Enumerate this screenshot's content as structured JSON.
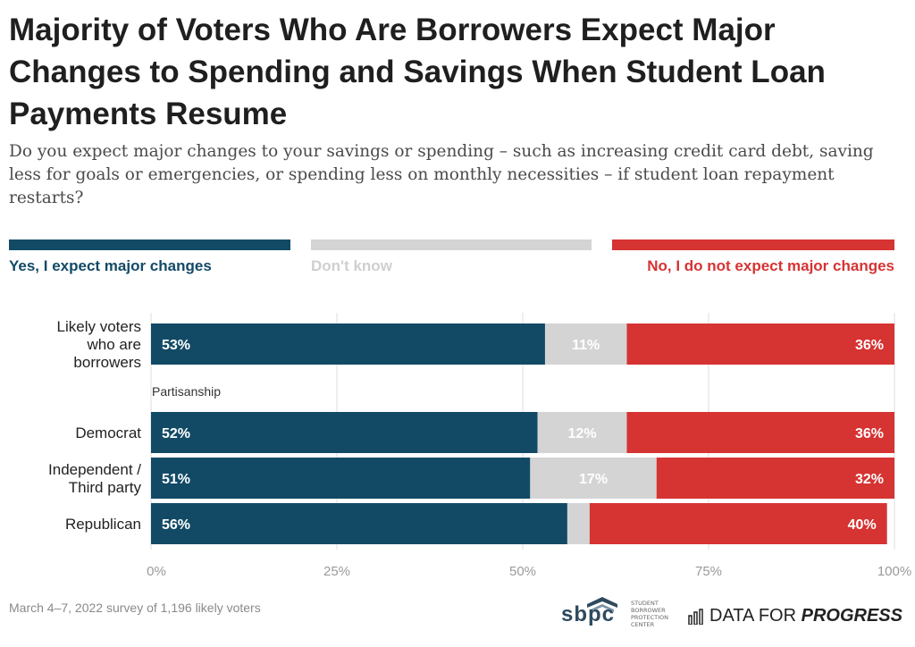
{
  "title": "Majority of Voters Who Are Borrowers Expect Major Changes to Spending and Savings When Student Loan Payments Resume",
  "subtitle": "Do you expect major changes to your savings or spending – such as increasing credit card debt, saving less for goals or emergencies, or spending less on monthly necessities – if student loan repayment restarts?",
  "legend": [
    {
      "label": "Yes, I expect major changes",
      "color": "#124a66"
    },
    {
      "label": "Don't know",
      "color": "#d4d4d4"
    },
    {
      "label": "No, I do not expect major changes",
      "color": "#d63333"
    }
  ],
  "footnote": "March 4–7, 2022 survey of 1,196 likely voters",
  "logos": {
    "sbpc": "sbpc",
    "sbpc_sub": "STUDENT BORROWER PROTECTION CENTER",
    "dfp_light": "DATA FOR",
    "dfp_bold": "PROGRESS"
  },
  "chart_data": {
    "type": "bar",
    "orientation": "horizontal",
    "stacked": true,
    "group_label": "Partisanship",
    "categories": [
      "Likely voters who are borrowers",
      "Democrat",
      "Independent / Third party",
      "Republican"
    ],
    "category_lines": [
      [
        "Likely voters",
        "who are",
        "borrowers"
      ],
      [
        "Democrat"
      ],
      [
        "Independent /",
        "Third party"
      ],
      [
        "Republican"
      ]
    ],
    "series": [
      {
        "name": "Yes, I expect major changes",
        "color": "#124a66",
        "values": [
          53,
          52,
          51,
          56
        ],
        "labels": [
          "53%",
          "52%",
          "51%",
          "56%"
        ]
      },
      {
        "name": "Don't know",
        "color": "#d4d4d4",
        "values": [
          11,
          12,
          17,
          3
        ],
        "labels": [
          "11%",
          "12%",
          "17%",
          ""
        ]
      },
      {
        "name": "No, I do not expect major changes",
        "color": "#d63333",
        "values": [
          36,
          36,
          32,
          40
        ],
        "labels": [
          "36%",
          "36%",
          "32%",
          "40%"
        ]
      }
    ],
    "xlim": [
      0,
      100
    ],
    "x_ticks": [
      "0%",
      "25%",
      "50%",
      "75%",
      "100%"
    ],
    "x_tick_values": [
      0,
      25,
      50,
      75,
      100
    ],
    "grid": true
  }
}
